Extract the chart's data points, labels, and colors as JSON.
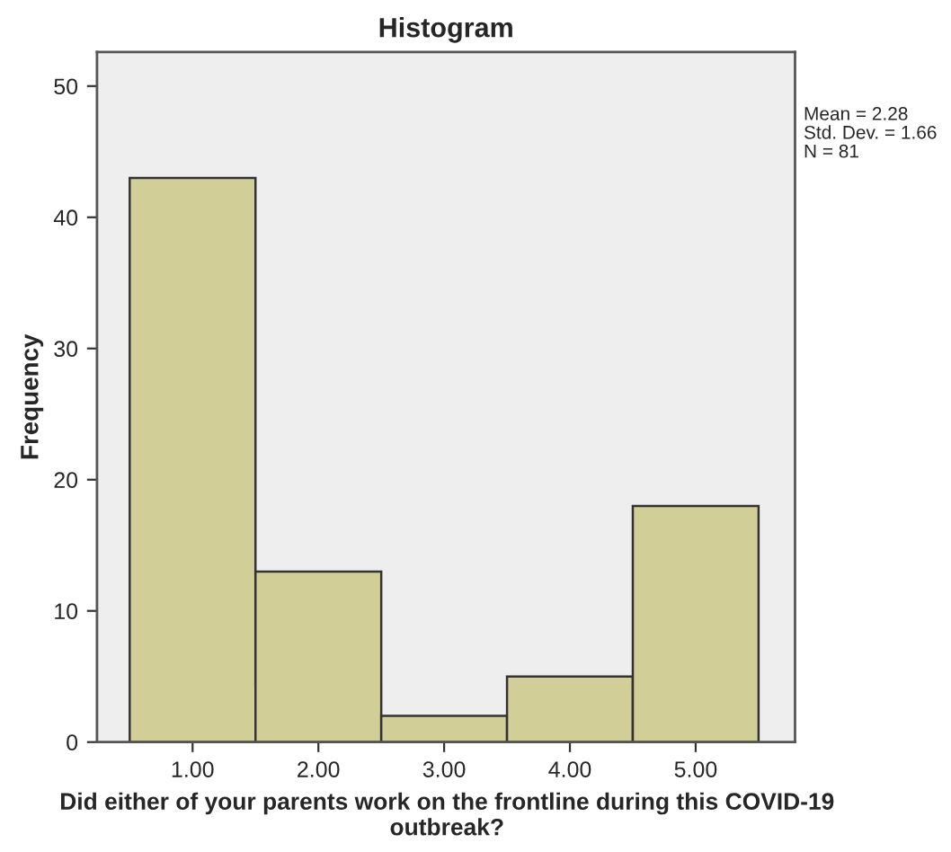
{
  "chart_data": {
    "type": "histogram",
    "title": "Histogram",
    "xlabel": "Did either of your parents work on the frontline during this COVID-19 outbreak?",
    "ylabel": "Frequency",
    "bins": [
      0.5,
      1.5,
      2.5,
      3.5,
      4.5,
      5.5
    ],
    "values": [
      43,
      13,
      2,
      5,
      18
    ],
    "color": "#d2ce98",
    "xlim": [
      0.24,
      5.79
    ],
    "ylim": [
      0,
      52.6
    ],
    "xticks": [
      {
        "value": 1,
        "label": "1.00"
      },
      {
        "value": 2,
        "label": "2.00"
      },
      {
        "value": 3,
        "label": "3.00"
      },
      {
        "value": 4,
        "label": "4.00"
      },
      {
        "value": 5,
        "label": "5.00"
      }
    ],
    "yticks": [
      0,
      10,
      20,
      30,
      40,
      50
    ],
    "grid": false,
    "annotations": [
      "Mean = 2.28",
      "Std. Dev. = 1.66",
      "N = 81"
    ]
  }
}
